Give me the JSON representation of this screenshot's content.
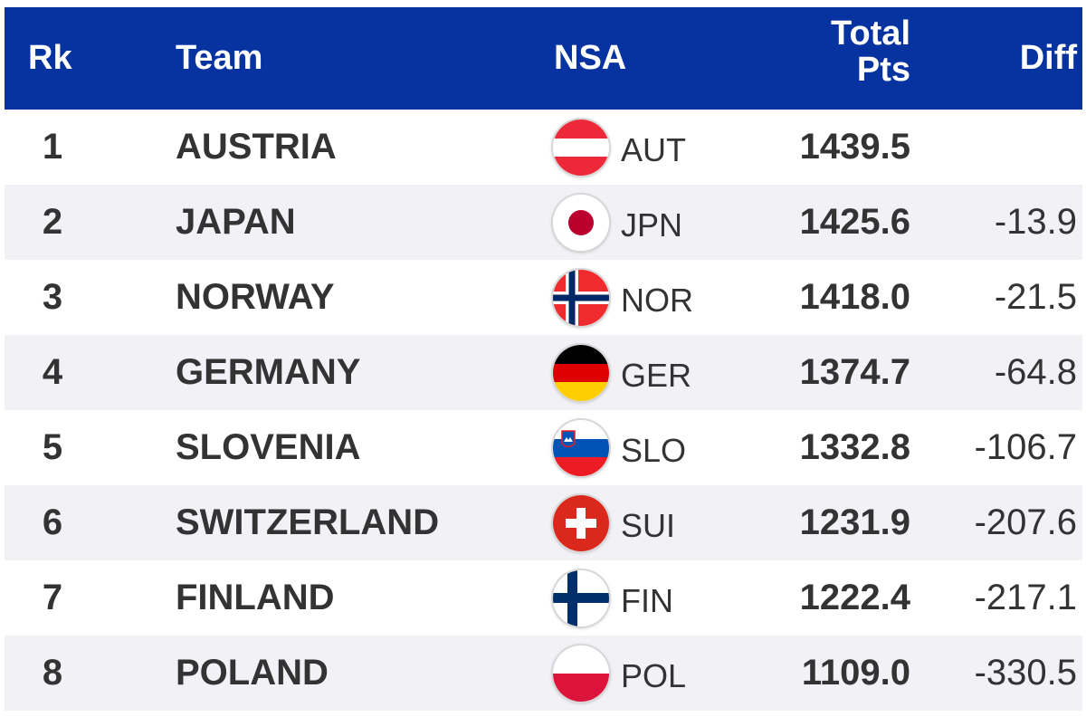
{
  "columns": {
    "rk": "Rk",
    "team": "Team",
    "nsa": "NSA",
    "total_line1": "Total",
    "total_line2": "Pts",
    "diff": "Diff"
  },
  "colors": {
    "header_bg": "#0733a0",
    "row_alt_bg": "#f1f1f6",
    "text": "#333333"
  },
  "rows": [
    {
      "rank": "1",
      "team": "AUSTRIA",
      "code": "AUT",
      "flag": "austria-flag-icon",
      "total": "1439.5",
      "diff": ""
    },
    {
      "rank": "2",
      "team": "JAPAN",
      "code": "JPN",
      "flag": "japan-flag-icon",
      "total": "1425.6",
      "diff": "-13.9"
    },
    {
      "rank": "3",
      "team": "NORWAY",
      "code": "NOR",
      "flag": "norway-flag-icon",
      "total": "1418.0",
      "diff": "-21.5"
    },
    {
      "rank": "4",
      "team": "GERMANY",
      "code": "GER",
      "flag": "germany-flag-icon",
      "total": "1374.7",
      "diff": "-64.8"
    },
    {
      "rank": "5",
      "team": "SLOVENIA",
      "code": "SLO",
      "flag": "slovenia-flag-icon",
      "total": "1332.8",
      "diff": "-106.7"
    },
    {
      "rank": "6",
      "team": "SWITZERLAND",
      "code": "SUI",
      "flag": "switzerland-flag-icon",
      "total": "1231.9",
      "diff": "-207.6"
    },
    {
      "rank": "7",
      "team": "FINLAND",
      "code": "FIN",
      "flag": "finland-flag-icon",
      "total": "1222.4",
      "diff": "-217.1"
    },
    {
      "rank": "8",
      "team": "POLAND",
      "code": "POL",
      "flag": "poland-flag-icon",
      "total": "1109.0",
      "diff": "-330.5"
    }
  ]
}
